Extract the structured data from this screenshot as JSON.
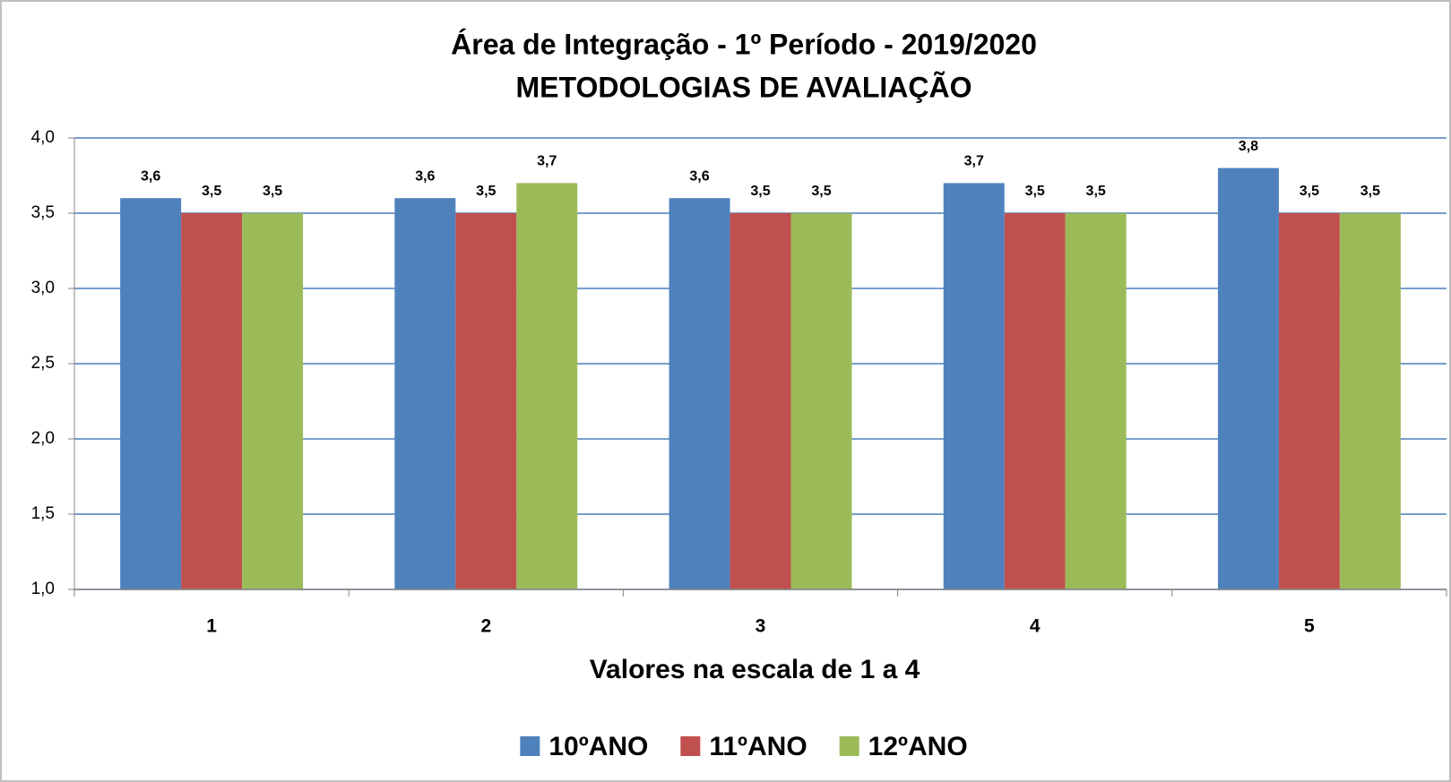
{
  "chart_data": {
    "type": "bar",
    "title": "Área de Integração - 1º Período - 2019/2020",
    "subtitle": "METODOLOGIAS DE AVALIAÇÃO",
    "x_label": "Valores na escala de 1 a 4",
    "categories": [
      "1",
      "2",
      "3",
      "4",
      "5"
    ],
    "series": [
      {
        "name": "10ºANO",
        "color": "#4f81bd",
        "values": [
          3.6,
          3.6,
          3.6,
          3.7,
          3.8
        ],
        "value_labels": [
          "3,6",
          "3,6",
          "3,6",
          "3,7",
          "3,8"
        ]
      },
      {
        "name": "11ºANO",
        "color": "#c0504d",
        "values": [
          3.5,
          3.5,
          3.5,
          3.5,
          3.5
        ],
        "value_labels": [
          "3,5",
          "3,5",
          "3,5",
          "3,5",
          "3,5"
        ]
      },
      {
        "name": "12ºANO",
        "color": "#9bbb59",
        "values": [
          3.5,
          3.7,
          3.5,
          3.5,
          3.5
        ],
        "value_labels": [
          "3,5",
          "3,7",
          "3,5",
          "3,5",
          "3,5"
        ]
      }
    ],
    "ylim": [
      1,
      4
    ],
    "yticks": [
      {
        "value": 1,
        "label": "1,0"
      },
      {
        "value": 1.5,
        "label": "1,5"
      },
      {
        "value": 2,
        "label": "2,0"
      },
      {
        "value": 2.5,
        "label": "2,5"
      },
      {
        "value": 3,
        "label": "3,0"
      },
      {
        "value": 3.5,
        "label": "3,5"
      },
      {
        "value": 4,
        "label": "4,0"
      }
    ],
    "grid": true,
    "legend": "bottom"
  }
}
